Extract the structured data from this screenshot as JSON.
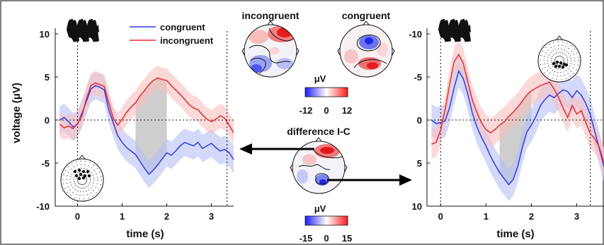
{
  "colors": {
    "congruent": "#2b3df0",
    "incongruent": "#ee2a2a",
    "congruent_band": "#b8bff6",
    "incongruent_band": "#f8c0c0",
    "window": "#bdbdbd"
  },
  "legend": {
    "congruent": "congruent",
    "incongruent": "incongruent"
  },
  "maps": {
    "incongruent_title": "incongruent",
    "congruent_title": "congruent",
    "difference_title": "difference I-C",
    "unit": "μV",
    "scale1_ticks": [
      "-12",
      "0",
      "12"
    ],
    "scale2_ticks": [
      "-15",
      "0",
      "15"
    ]
  },
  "chart_data": [
    {
      "type": "line",
      "panel": "left",
      "xlabel": "time (s)",
      "ylabel": "voltage (μV)",
      "xlim": [
        -0.5,
        3.5
      ],
      "ylim": [
        -10,
        10
      ],
      "yaxis_reversed": false,
      "xticks": [
        "0",
        "1",
        "2",
        "3"
      ],
      "yticks": [
        "10",
        "5",
        "0",
        "-5",
        "-10"
      ],
      "highlight_window": [
        1.3,
        2.0
      ],
      "markers": [
        0,
        3.35
      ],
      "series": [
        {
          "name": "congruent",
          "x": [
            -0.4,
            -0.3,
            -0.2,
            -0.1,
            0,
            0.1,
            0.2,
            0.3,
            0.4,
            0.5,
            0.6,
            0.7,
            0.8,
            0.9,
            1.0,
            1.1,
            1.2,
            1.3,
            1.4,
            1.5,
            1.6,
            1.7,
            1.8,
            1.9,
            2.0,
            2.1,
            2.2,
            2.3,
            2.4,
            2.5,
            2.6,
            2.7,
            2.8,
            2.9,
            3.0,
            3.1,
            3.2,
            3.3,
            3.4,
            3.5
          ],
          "y": [
            0,
            0.3,
            -0.2,
            -0.8,
            -0.5,
            0.8,
            2.2,
            3.6,
            4.0,
            3.8,
            3.5,
            1.2,
            -0.3,
            -1.8,
            -2.6,
            -3.2,
            -3.6,
            -4.0,
            -4.8,
            -5.6,
            -6.3,
            -5.8,
            -5.2,
            -4.5,
            -3.8,
            -4.1,
            -3.6,
            -3.0,
            -2.6,
            -2.8,
            -3.0,
            -2.6,
            -3.3,
            -3.0,
            -2.7,
            -3.2,
            -3.6,
            -3.4,
            -3.8,
            -4.6
          ]
        },
        {
          "name": "incongruent",
          "x": [
            -0.4,
            -0.3,
            -0.2,
            -0.1,
            0,
            0.1,
            0.2,
            0.3,
            0.4,
            0.5,
            0.6,
            0.7,
            0.8,
            0.9,
            1.0,
            1.1,
            1.2,
            1.3,
            1.4,
            1.5,
            1.6,
            1.7,
            1.8,
            1.9,
            2.0,
            2.1,
            2.2,
            2.3,
            2.4,
            2.5,
            2.6,
            2.7,
            2.8,
            2.9,
            3.0,
            3.1,
            3.2,
            3.3,
            3.4,
            3.5
          ],
          "y": [
            -0.5,
            -0.9,
            -0.7,
            -1.0,
            -0.4,
            0.5,
            2.5,
            4.0,
            4.3,
            4.1,
            3.9,
            2.0,
            0.2,
            -0.6,
            0.1,
            0.9,
            1.5,
            2.0,
            2.8,
            3.4,
            4.1,
            4.6,
            4.9,
            4.7,
            4.6,
            4.0,
            3.5,
            3.0,
            2.4,
            1.8,
            1.4,
            1.2,
            0.6,
            0.1,
            -0.2,
            0.1,
            0.5,
            0.2,
            -0.6,
            -1.5
          ]
        }
      ]
    },
    {
      "type": "line",
      "panel": "right",
      "xlabel": "time (s)",
      "ylabel": "",
      "xlim": [
        -0.3,
        3.6
      ],
      "ylim": [
        -10,
        10
      ],
      "yaxis_reversed": true,
      "xticks": [
        "0",
        "1",
        "2",
        "3"
      ],
      "yticks": [
        "10",
        "5",
        "0",
        "-5",
        "-10"
      ],
      "highlight_window": [
        1.3,
        2.0
      ],
      "markers": [
        0,
        3.3
      ],
      "series": [
        {
          "name": "congruent",
          "x": [
            -0.2,
            -0.1,
            0,
            0.1,
            0.2,
            0.3,
            0.4,
            0.5,
            0.6,
            0.7,
            0.8,
            0.9,
            1.0,
            1.1,
            1.2,
            1.3,
            1.4,
            1.5,
            1.6,
            1.7,
            1.8,
            1.9,
            2.0,
            2.1,
            2.2,
            2.3,
            2.4,
            2.5,
            2.6,
            2.7,
            2.8,
            2.9,
            3.0,
            3.1,
            3.2,
            3.3,
            3.4,
            3.5,
            3.6
          ],
          "y": [
            0,
            0.4,
            0.3,
            0.1,
            -1.5,
            -3.8,
            -5.7,
            -4.8,
            -3.0,
            -0.8,
            0.8,
            2.0,
            3.0,
            4.2,
            5.2,
            6.1,
            6.8,
            7.5,
            6.9,
            5.4,
            3.2,
            1.4,
            0.6,
            -0.4,
            -1.7,
            -2.4,
            -2.9,
            -2.6,
            -3.1,
            -3.5,
            -3.3,
            -2.6,
            -3.4,
            -2.9,
            -1.9,
            -0.6,
            1.4,
            3.4,
            5.4
          ]
        },
        {
          "name": "incongruent",
          "x": [
            -0.2,
            -0.1,
            0,
            0.1,
            0.2,
            0.3,
            0.4,
            0.5,
            0.6,
            0.7,
            0.8,
            0.9,
            1.0,
            1.1,
            1.2,
            1.3,
            1.4,
            1.5,
            1.6,
            1.7,
            1.8,
            1.9,
            2.0,
            2.1,
            2.2,
            2.3,
            2.4,
            2.5,
            2.6,
            2.7,
            2.8,
            2.9,
            3.0,
            3.1,
            3.2,
            3.3,
            3.4,
            3.5,
            3.6
          ],
          "y": [
            2.8,
            2.6,
            1.2,
            -1.2,
            -4.2,
            -6.8,
            -7.6,
            -6.6,
            -4.4,
            -2.3,
            -0.9,
            0.3,
            1.1,
            1.5,
            1.1,
            0.6,
            0.2,
            -0.4,
            -0.9,
            -1.5,
            -2.2,
            -2.9,
            -3.4,
            -3.7,
            -4.0,
            -4.2,
            -4.4,
            -3.6,
            -2.6,
            -1.4,
            -0.3,
            -1.7,
            -0.7,
            -1.1,
            0.3,
            1.6,
            2.2,
            3.2,
            5.0
          ]
        }
      ]
    }
  ]
}
